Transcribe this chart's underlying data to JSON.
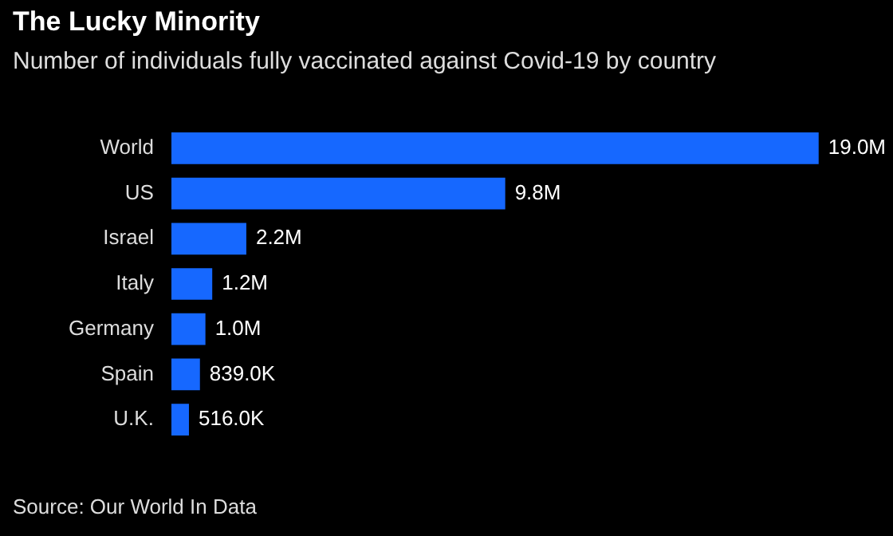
{
  "chart_data": {
    "type": "bar",
    "orientation": "horizontal",
    "title": "The Lucky Minority",
    "subtitle": "Number of individuals fully vaccinated against Covid-19 by country",
    "categories": [
      "World",
      "US",
      "Israel",
      "Italy",
      "Germany",
      "Spain",
      "U.K."
    ],
    "values": [
      19000000,
      9800000,
      2200000,
      1200000,
      1000000,
      839000,
      516000
    ],
    "value_labels": [
      "19.0M",
      "9.8M",
      "2.2M",
      "1.2M",
      "1.0M",
      "839.0K",
      "516.0K"
    ],
    "color": "#1668ff",
    "annotations": [
      "Source: Our World In Data"
    ]
  }
}
